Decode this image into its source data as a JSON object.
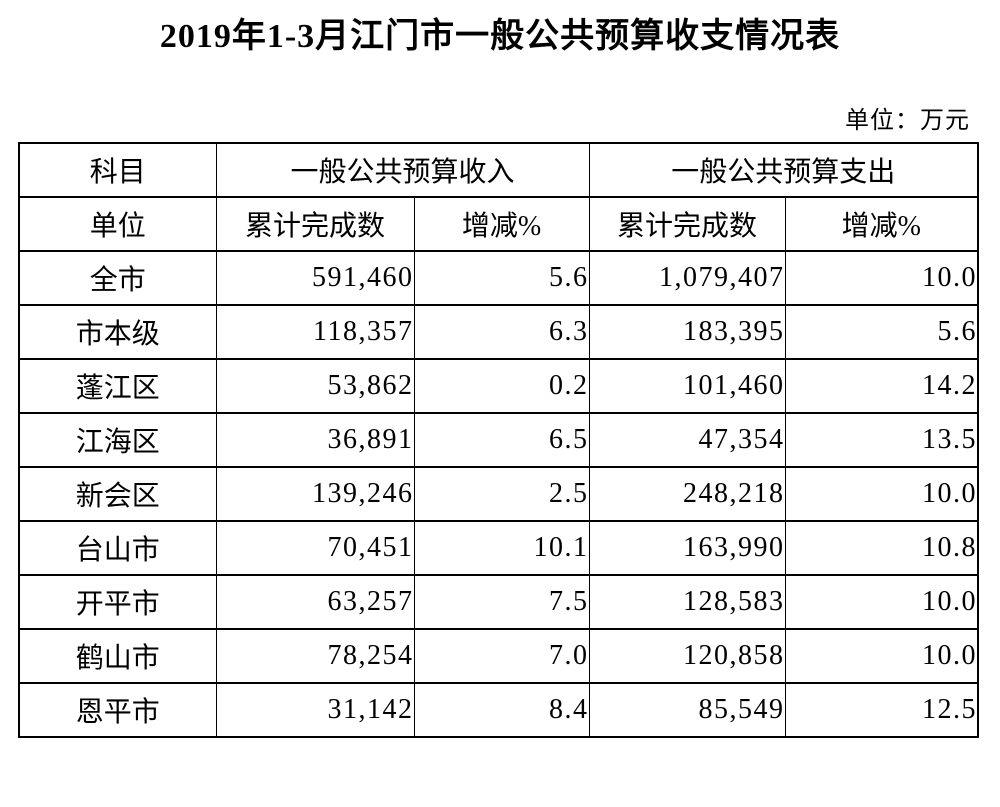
{
  "title": "2019年1-3月江门市一般公共预算收支情况表",
  "unit_note": "单位：万元",
  "colors": {
    "text": "#000000",
    "background": "#ffffff",
    "border": "#000000"
  },
  "table": {
    "header": {
      "subject": "科目",
      "unit": "单位",
      "revenue_group": "一般公共预算收入",
      "expenditure_group": "一般公共预算支出",
      "revenue_cumulative": "累计完成数",
      "revenue_change": "增减%",
      "expenditure_cumulative": "累计完成数",
      "expenditure_change": "增减%"
    },
    "rows": [
      {
        "region": "全市",
        "revenue_total": "591,460",
        "revenue_change": "5.6",
        "expenditure_total": "1,079,407",
        "expenditure_change": "10.0"
      },
      {
        "region": "市本级",
        "revenue_total": "118,357",
        "revenue_change": "6.3",
        "expenditure_total": "183,395",
        "expenditure_change": "5.6"
      },
      {
        "region": "蓬江区",
        "revenue_total": "53,862",
        "revenue_change": "0.2",
        "expenditure_total": "101,460",
        "expenditure_change": "14.2"
      },
      {
        "region": "江海区",
        "revenue_total": "36,891",
        "revenue_change": "6.5",
        "expenditure_total": "47,354",
        "expenditure_change": "13.5"
      },
      {
        "region": "新会区",
        "revenue_total": "139,246",
        "revenue_change": "2.5",
        "expenditure_total": "248,218",
        "expenditure_change": "10.0"
      },
      {
        "region": "台山市",
        "revenue_total": "70,451",
        "revenue_change": "10.1",
        "expenditure_total": "163,990",
        "expenditure_change": "10.8"
      },
      {
        "region": "开平市",
        "revenue_total": "63,257",
        "revenue_change": "7.5",
        "expenditure_total": "128,583",
        "expenditure_change": "10.0"
      },
      {
        "region": "鹤山市",
        "revenue_total": "78,254",
        "revenue_change": "7.0",
        "expenditure_total": "120,858",
        "expenditure_change": "10.0"
      },
      {
        "region": "恩平市",
        "revenue_total": "31,142",
        "revenue_change": "8.4",
        "expenditure_total": "85,549",
        "expenditure_change": "12.5"
      }
    ]
  }
}
